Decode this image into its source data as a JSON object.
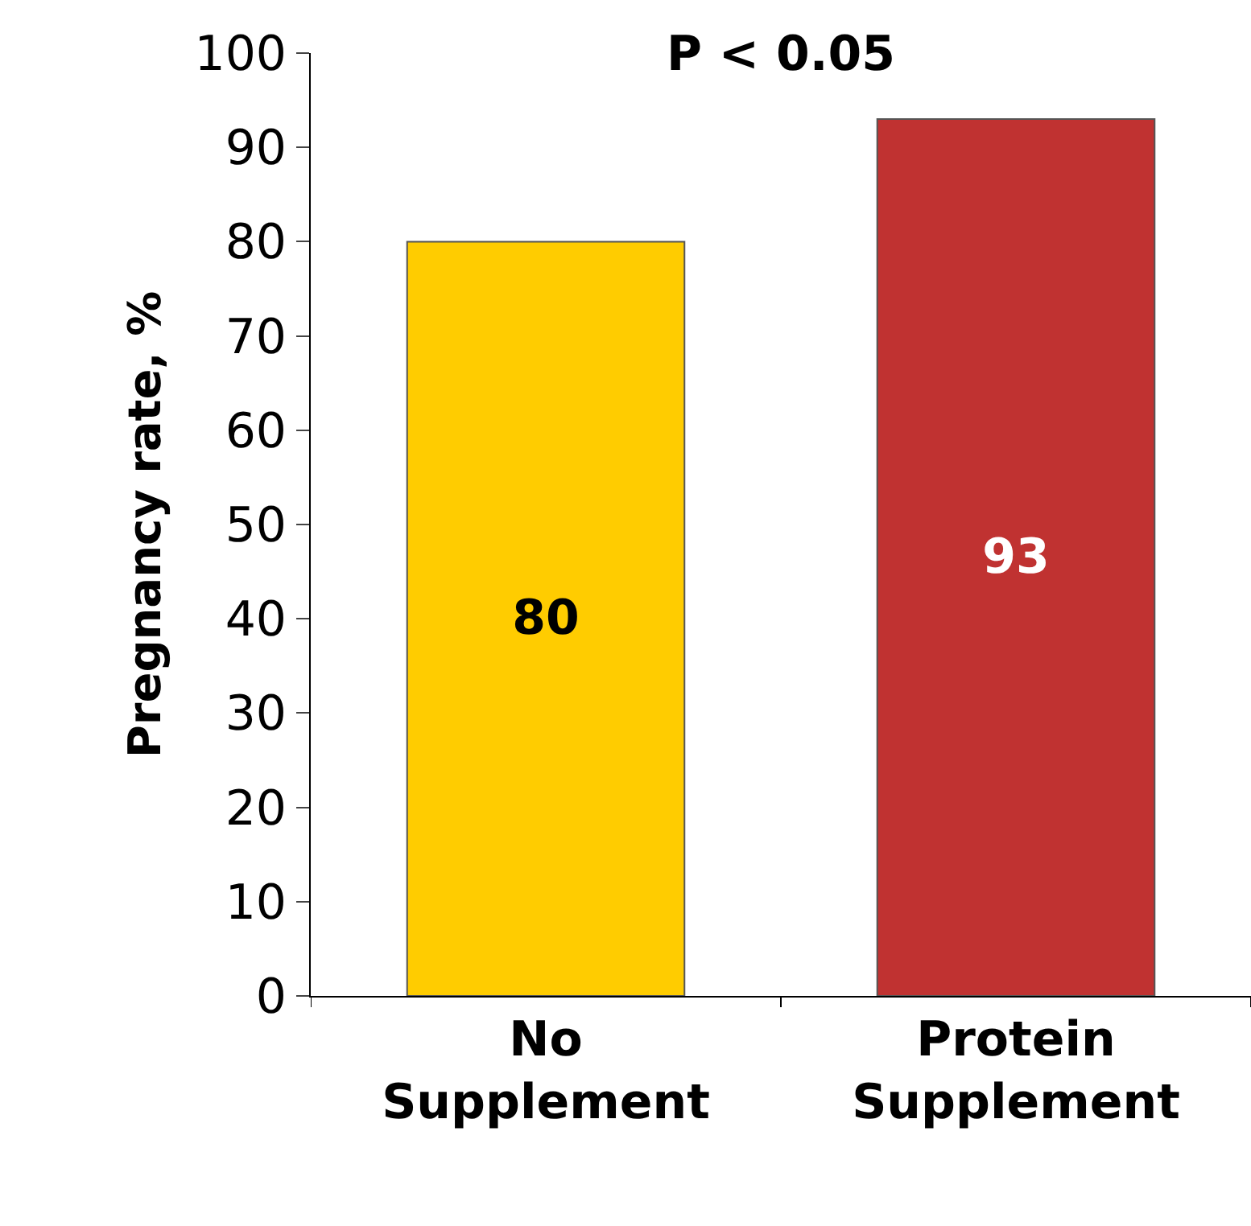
{
  "chart_data": {
    "type": "bar",
    "title": "P < 0.05",
    "ylabel": "Pregnancy rate, %",
    "categories": [
      "No Supplement",
      "Protein Supplement"
    ],
    "values": [
      80,
      93
    ],
    "colors": [
      "#ffcc00",
      "#c03231"
    ],
    "ylim": [
      0,
      100
    ],
    "yticks": [
      0,
      10,
      20,
      30,
      40,
      50,
      60,
      70,
      80,
      90,
      100
    ],
    "data_labels": true
  }
}
